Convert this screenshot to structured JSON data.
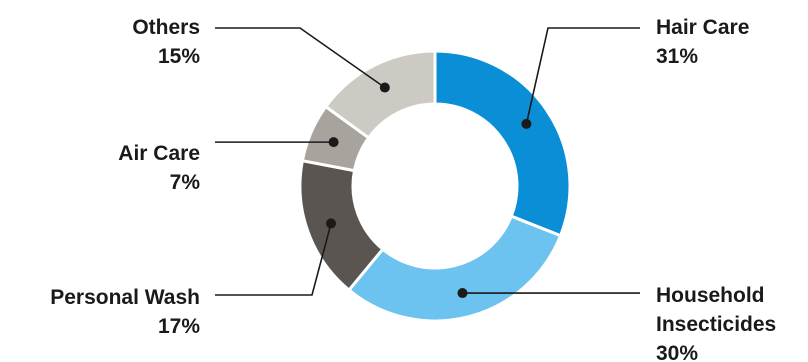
{
  "chart_data": {
    "type": "pie",
    "donut": true,
    "categories": [
      "Hair Care",
      "Household Insecticides",
      "Personal Wash",
      "Air Care",
      "Others"
    ],
    "values": [
      31,
      30,
      17,
      7,
      15
    ],
    "value_labels": [
      "31%",
      "30%",
      "17%",
      "7%",
      "15%"
    ],
    "colors": [
      "#0a8fd6",
      "#6cc3ef",
      "#5a5550",
      "#a8a39c",
      "#cdc9c3"
    ],
    "title": "",
    "legend": "none"
  }
}
